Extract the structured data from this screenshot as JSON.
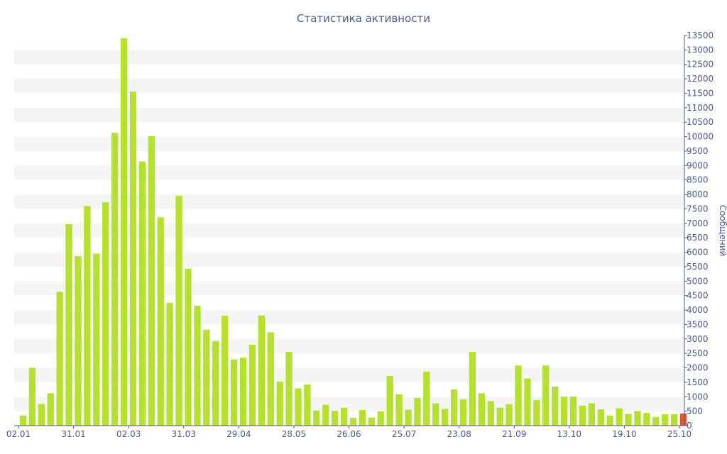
{
  "chart_data": {
    "type": "bar",
    "title": "Статистика активности",
    "ylabel": "Сообщений",
    "ylim": [
      0,
      13500
    ],
    "y_ticks": [
      0,
      500,
      1000,
      1500,
      2000,
      2500,
      3000,
      3500,
      4000,
      4500,
      5000,
      5500,
      6000,
      6500,
      7000,
      7500,
      8000,
      8500,
      9000,
      9500,
      10000,
      10500,
      11000,
      11500,
      12000,
      12500,
      13000,
      13500
    ],
    "x_tick_labels": [
      "02.01",
      "31.01",
      "02.03",
      "31.03",
      "29.04",
      "28.05",
      "26.06",
      "25.07",
      "23.08",
      "21.09",
      "13.10",
      "19.10",
      "25.10"
    ],
    "grid": "alternating horizontal bands",
    "y_axis_position": "right",
    "colors": {
      "bar": "#b5e02d",
      "last_bar": "#e5542a",
      "text": "#4a5a8c",
      "band": "#f5f5f5"
    },
    "values": [
      350,
      2000,
      750,
      1120,
      4630,
      6970,
      5860,
      7600,
      5950,
      7730,
      10130,
      13400,
      11560,
      9140,
      10020,
      7210,
      4250,
      7950,
      5430,
      4150,
      3320,
      2920,
      3800,
      2290,
      2350,
      2800,
      3810,
      3230,
      1520,
      2550,
      1290,
      1420,
      520,
      720,
      510,
      620,
      270,
      540,
      280,
      490,
      1720,
      1080,
      550,
      960,
      1870,
      770,
      580,
      1250,
      910,
      2550,
      1120,
      850,
      620,
      740,
      2080,
      1630,
      880,
      2080,
      1350,
      1000,
      1010,
      690,
      770,
      560,
      350,
      600,
      410,
      500,
      440,
      300,
      390,
      400,
      420
    ]
  }
}
